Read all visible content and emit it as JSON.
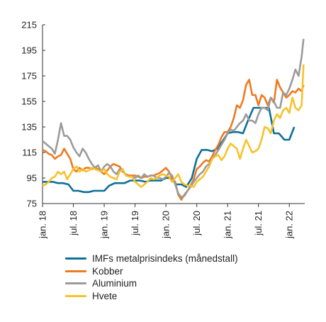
{
  "chart_data": {
    "type": "line",
    "ylim": [
      75,
      215
    ],
    "yticks": [
      75,
      95,
      115,
      135,
      155,
      175,
      195,
      215
    ],
    "xticks": [
      {
        "x": 2018.0,
        "label": "jan. 18"
      },
      {
        "x": 2018.5,
        "label": "jul. 18"
      },
      {
        "x": 2019.0,
        "label": "jan. 19"
      },
      {
        "x": 2019.5,
        "label": "jul. 19"
      },
      {
        "x": 2020.0,
        "label": "jan. 20"
      },
      {
        "x": 2020.5,
        "label": "jul. 20"
      },
      {
        "x": 2021.0,
        "label": "jan. 21"
      },
      {
        "x": 2021.5,
        "label": "jul. 21"
      },
      {
        "x": 2022.0,
        "label": "jan. 22"
      }
    ],
    "xlim": [
      2018.0,
      2022.25
    ],
    "series": [
      {
        "name": "IMFs metalprisindeks (månedstall)",
        "color": "#0e7097",
        "x": [
          2018.0,
          2018.08,
          2018.17,
          2018.25,
          2018.33,
          2018.42,
          2018.5,
          2018.58,
          2018.67,
          2018.75,
          2018.83,
          2018.92,
          2019.0,
          2019.08,
          2019.17,
          2019.25,
          2019.33,
          2019.42,
          2019.5,
          2019.58,
          2019.67,
          2019.75,
          2019.83,
          2019.92,
          2020.0,
          2020.08,
          2020.17,
          2020.25,
          2020.33,
          2020.42,
          2020.5,
          2020.58,
          2020.67,
          2020.75,
          2020.83,
          2020.92,
          2021.0,
          2021.08,
          2021.17,
          2021.25,
          2021.33,
          2021.42,
          2021.5,
          2021.58,
          2021.67,
          2021.75,
          2021.83,
          2021.92,
          2022.0,
          2022.08
        ],
        "values": [
          92,
          92,
          92,
          91,
          91,
          90,
          85,
          85,
          84,
          84,
          85,
          85,
          85,
          89,
          91,
          91,
          91,
          93,
          93,
          93,
          92,
          93,
          93,
          93,
          95,
          95,
          90,
          90,
          88,
          95,
          110,
          117,
          117,
          116,
          118,
          124,
          130,
          131,
          131,
          130,
          140,
          150,
          150,
          150,
          150,
          130,
          130,
          125,
          125,
          135
        ]
      },
      {
        "name": "Kobber",
        "color": "#ee7a21",
        "x": [
          2018.0,
          2018.05,
          2018.1,
          2018.15,
          2018.2,
          2018.25,
          2018.3,
          2018.35,
          2018.4,
          2018.45,
          2018.5,
          2018.55,
          2018.6,
          2018.65,
          2018.7,
          2018.75,
          2018.8,
          2018.85,
          2018.9,
          2018.95,
          2019.0,
          2019.05,
          2019.1,
          2019.15,
          2019.2,
          2019.25,
          2019.3,
          2019.35,
          2019.4,
          2019.45,
          2019.5,
          2019.55,
          2019.6,
          2019.65,
          2019.7,
          2019.75,
          2019.8,
          2019.85,
          2019.9,
          2019.95,
          2020.0,
          2020.05,
          2020.1,
          2020.15,
          2020.2,
          2020.25,
          2020.3,
          2020.35,
          2020.4,
          2020.45,
          2020.5,
          2020.55,
          2020.6,
          2020.65,
          2020.7,
          2020.75,
          2020.8,
          2020.85,
          2020.9,
          2020.95,
          2021.0,
          2021.05,
          2021.1,
          2021.15,
          2021.2,
          2021.25,
          2021.3,
          2021.35,
          2021.4,
          2021.45,
          2021.5,
          2021.55,
          2021.6,
          2021.65,
          2021.7,
          2021.75,
          2021.8,
          2021.85,
          2021.9,
          2021.95,
          2022.0,
          2022.05,
          2022.1,
          2022.15,
          2022.2,
          2022.23
        ],
        "values": [
          117,
          116,
          114,
          113,
          110,
          112,
          113,
          118,
          114,
          110,
          102,
          100,
          103,
          101,
          103,
          103,
          102,
          103,
          102,
          100,
          98,
          101,
          104,
          106,
          105,
          104,
          100,
          98,
          97,
          97,
          97,
          96,
          95,
          96,
          96,
          97,
          97,
          98,
          99,
          101,
          103,
          100,
          95,
          92,
          82,
          78,
          82,
          85,
          89,
          94,
          102,
          104,
          107,
          109,
          108,
          112,
          117,
          121,
          127,
          131,
          131,
          135,
          142,
          152,
          150,
          156,
          168,
          172,
          160,
          160,
          152,
          160,
          158,
          152,
          158,
          154,
          172,
          166,
          162,
          158,
          160,
          163,
          162,
          165,
          163,
          168
        ]
      },
      {
        "name": "Aluminium",
        "color": "#9b9b9b",
        "x": [
          2018.0,
          2018.05,
          2018.1,
          2018.15,
          2018.2,
          2018.25,
          2018.3,
          2018.35,
          2018.4,
          2018.45,
          2018.5,
          2018.55,
          2018.6,
          2018.65,
          2018.7,
          2018.75,
          2018.8,
          2018.85,
          2018.9,
          2018.95,
          2019.0,
          2019.05,
          2019.1,
          2019.15,
          2019.2,
          2019.25,
          2019.3,
          2019.35,
          2019.4,
          2019.45,
          2019.5,
          2019.55,
          2019.6,
          2019.65,
          2019.7,
          2019.75,
          2019.8,
          2019.85,
          2019.9,
          2019.95,
          2020.0,
          2020.05,
          2020.1,
          2020.15,
          2020.2,
          2020.25,
          2020.3,
          2020.35,
          2020.4,
          2020.45,
          2020.5,
          2020.55,
          2020.6,
          2020.65,
          2020.7,
          2020.75,
          2020.8,
          2020.85,
          2020.9,
          2020.95,
          2021.0,
          2021.05,
          2021.1,
          2021.15,
          2021.2,
          2021.25,
          2021.3,
          2021.35,
          2021.4,
          2021.45,
          2021.5,
          2021.55,
          2021.6,
          2021.65,
          2021.7,
          2021.75,
          2021.8,
          2021.85,
          2021.9,
          2021.95,
          2022.0,
          2022.05,
          2022.1,
          2022.15,
          2022.2,
          2022.23
        ],
        "values": [
          124,
          122,
          120,
          118,
          114,
          125,
          138,
          128,
          128,
          125,
          119,
          115,
          112,
          118,
          115,
          110,
          106,
          103,
          105,
          100,
          104,
          106,
          104,
          100,
          98,
          102,
          100,
          98,
          96,
          96,
          95,
          97,
          95,
          98,
          96,
          97,
          97,
          95,
          95,
          94,
          96,
          99,
          97,
          90,
          83,
          80,
          81,
          85,
          88,
          92,
          95,
          98,
          100,
          104,
          106,
          110,
          113,
          117,
          121,
          125,
          130,
          133,
          132,
          135,
          138,
          140,
          145,
          140,
          140,
          138,
          145,
          150,
          150,
          148,
          158,
          155,
          150,
          150,
          162,
          160,
          165,
          172,
          180,
          175,
          190,
          204
        ]
      },
      {
        "name": "Hvete",
        "color": "#f7c22a",
        "x": [
          2018.0,
          2018.05,
          2018.1,
          2018.15,
          2018.2,
          2018.25,
          2018.3,
          2018.35,
          2018.4,
          2018.45,
          2018.5,
          2018.55,
          2018.6,
          2018.65,
          2018.7,
          2018.75,
          2018.8,
          2018.85,
          2018.9,
          2018.95,
          2019.0,
          2019.05,
          2019.1,
          2019.15,
          2019.2,
          2019.25,
          2019.3,
          2019.35,
          2019.4,
          2019.45,
          2019.5,
          2019.55,
          2019.6,
          2019.65,
          2019.7,
          2019.75,
          2019.8,
          2019.85,
          2019.9,
          2019.95,
          2020.0,
          2020.05,
          2020.1,
          2020.15,
          2020.2,
          2020.25,
          2020.3,
          2020.35,
          2020.4,
          2020.45,
          2020.5,
          2020.55,
          2020.6,
          2020.65,
          2020.7,
          2020.75,
          2020.8,
          2020.85,
          2020.9,
          2020.95,
          2021.0,
          2021.05,
          2021.1,
          2021.15,
          2021.2,
          2021.25,
          2021.3,
          2021.35,
          2021.4,
          2021.45,
          2021.5,
          2021.55,
          2021.6,
          2021.65,
          2021.7,
          2021.75,
          2021.8,
          2021.85,
          2021.9,
          2021.95,
          2022.0,
          2022.05,
          2022.1,
          2022.15,
          2022.2,
          2022.23
        ],
        "values": [
          89,
          90,
          92,
          95,
          96,
          100,
          98,
          100,
          94,
          98,
          102,
          104,
          100,
          102,
          100,
          101,
          103,
          102,
          101,
          100,
          102,
          98,
          96,
          95,
          94,
          100,
          102,
          97,
          96,
          96,
          92,
          90,
          88,
          90,
          92,
          95,
          94,
          95,
          97,
          98,
          97,
          96,
          92,
          95,
          98,
          92,
          90,
          89,
          89,
          88,
          92,
          94,
          96,
          100,
          104,
          110,
          112,
          113,
          109,
          112,
          118,
          122,
          120,
          118,
          110,
          118,
          125,
          120,
          115,
          116,
          118,
          125,
          135,
          134,
          130,
          140,
          145,
          142,
          148,
          150,
          146,
          158,
          150,
          148,
          152,
          184
        ]
      }
    ]
  }
}
